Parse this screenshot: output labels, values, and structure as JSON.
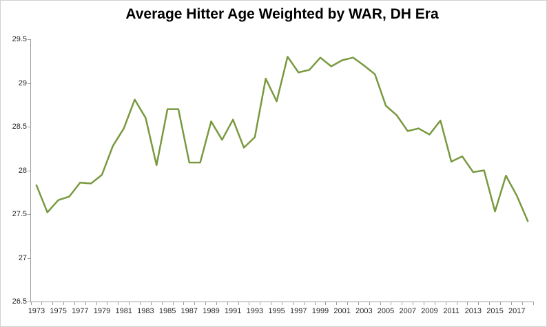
{
  "chart_data": {
    "type": "line",
    "title": "Average Hitter Age Weighted by WAR, DH Era",
    "xlabel": "",
    "ylabel": "",
    "x": [
      1973,
      1974,
      1975,
      1976,
      1977,
      1978,
      1979,
      1980,
      1981,
      1982,
      1983,
      1984,
      1985,
      1986,
      1987,
      1988,
      1989,
      1990,
      1991,
      1992,
      1993,
      1994,
      1995,
      1996,
      1997,
      1998,
      1999,
      2000,
      2001,
      2002,
      2003,
      2004,
      2005,
      2006,
      2007,
      2008,
      2009,
      2010,
      2011,
      2012,
      2013,
      2014,
      2015,
      2016,
      2017,
      2018
    ],
    "values": [
      27.83,
      27.52,
      27.66,
      27.7,
      27.86,
      27.85,
      27.95,
      28.28,
      28.48,
      28.81,
      28.6,
      28.06,
      28.7,
      28.7,
      28.09,
      28.09,
      28.56,
      28.35,
      28.58,
      28.26,
      28.38,
      29.05,
      28.79,
      29.3,
      29.12,
      29.15,
      29.29,
      29.19,
      29.26,
      29.29,
      29.2,
      29.1,
      28.74,
      28.63,
      28.45,
      28.48,
      28.41,
      28.57,
      28.1,
      28.16,
      27.98,
      28.0,
      27.53,
      27.94,
      27.71,
      27.42
    ],
    "ylim": [
      26.5,
      29.5
    ],
    "ytick_step": 0.5,
    "ytick_labels": [
      "29.5",
      "29",
      "28.5",
      "28",
      "27.5",
      "27",
      "26.5"
    ],
    "xtick_labels": [
      "1973",
      "1975",
      "1977",
      "1979",
      "1981",
      "1983",
      "1985",
      "1987",
      "1989",
      "1991",
      "1993",
      "1995",
      "1997",
      "1999",
      "2001",
      "2003",
      "2005",
      "2007",
      "2009",
      "2011",
      "2013",
      "2015",
      "2017"
    ],
    "grid": false,
    "legend": "none",
    "line_color": "#78993e",
    "axis_color": "#9d9d9d",
    "label_color": "#262626",
    "title_color": "#000000",
    "background_color": "#ffffff",
    "border_color": "#d0d0d0"
  }
}
